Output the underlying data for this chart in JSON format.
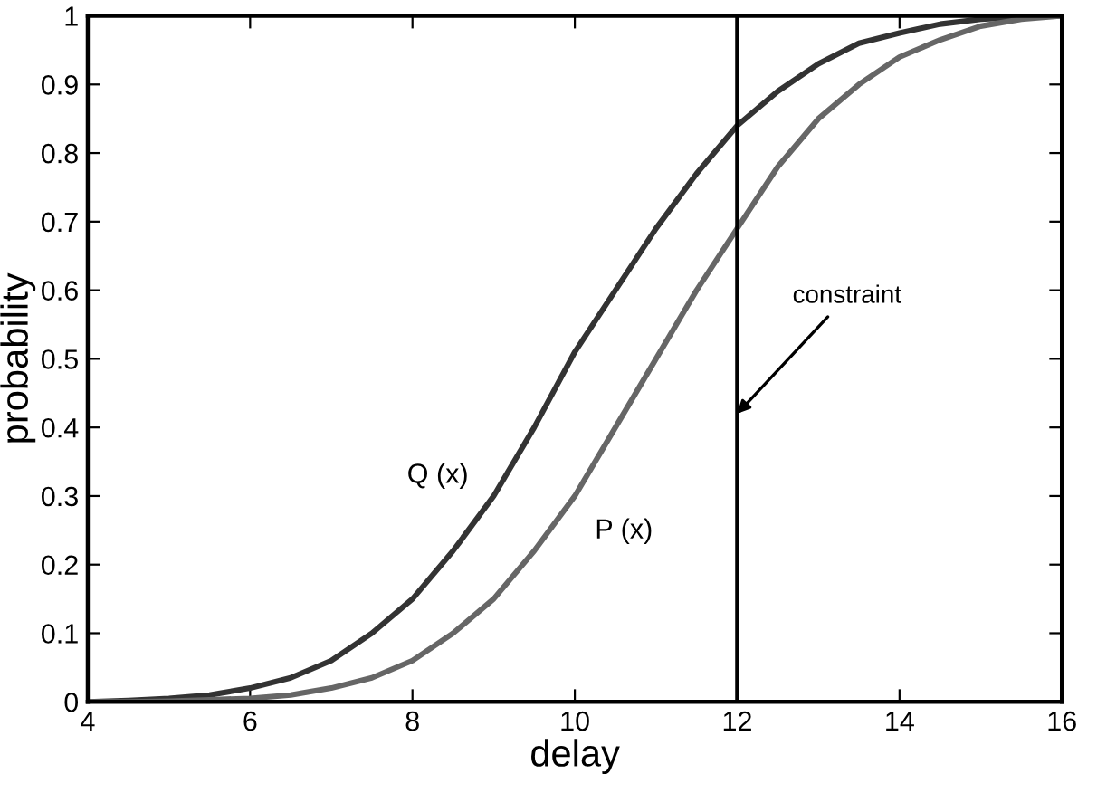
{
  "chart_data": {
    "type": "line",
    "xlabel": "delay",
    "ylabel": "probability",
    "xlim": [
      4,
      16
    ],
    "ylim": [
      0,
      1
    ],
    "xticks": [
      4,
      6,
      8,
      10,
      12,
      14,
      16
    ],
    "yticks": [
      0,
      0.1,
      0.2,
      0.3,
      0.4,
      0.5,
      0.6,
      0.7,
      0.8,
      0.9,
      1
    ],
    "x": [
      4,
      4.5,
      5,
      5.5,
      6,
      6.5,
      7,
      7.5,
      8,
      8.5,
      9,
      9.5,
      10,
      10.5,
      11,
      11.5,
      12,
      12.5,
      13,
      13.5,
      14,
      14.5,
      15,
      15.5,
      16
    ],
    "series": [
      {
        "name": "Q (x)",
        "color": "#333333",
        "values": [
          0,
          0.002,
          0.005,
          0.01,
          0.02,
          0.035,
          0.06,
          0.1,
          0.15,
          0.22,
          0.3,
          0.4,
          0.51,
          0.6,
          0.69,
          0.77,
          0.84,
          0.89,
          0.93,
          0.96,
          0.975,
          0.988,
          0.995,
          0.998,
          1
        ]
      },
      {
        "name": "P (x)",
        "color": "#666666",
        "values": [
          0,
          0,
          0.001,
          0.003,
          0.005,
          0.01,
          0.02,
          0.035,
          0.06,
          0.1,
          0.15,
          0.22,
          0.3,
          0.4,
          0.5,
          0.6,
          0.69,
          0.78,
          0.85,
          0.9,
          0.94,
          0.965,
          0.985,
          0.995,
          1
        ]
      }
    ],
    "ref_lines": [
      {
        "axis": "x",
        "value": 12,
        "color": "#000000"
      }
    ],
    "annotations": [
      {
        "text": "constraint",
        "x": 12,
        "y": 0.42
      }
    ],
    "grid": false,
    "legend": false,
    "marker": "none",
    "line_style": "solid"
  }
}
